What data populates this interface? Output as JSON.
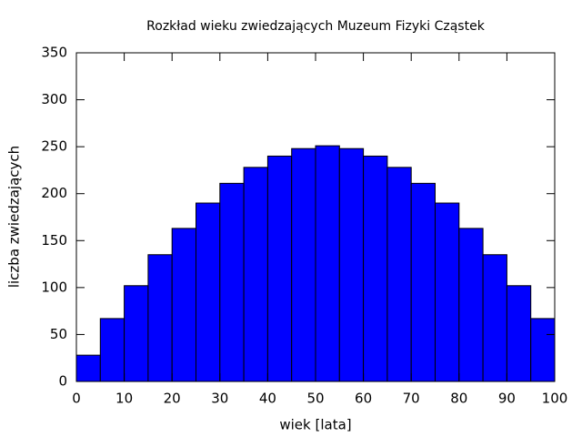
{
  "chart_data": {
    "type": "histogram",
    "title": "Rozkład wieku zwiedzających Muzeum Fizyki Cząstek",
    "x_label": "wiek [lata]",
    "y_label": "liczba zwiedzających",
    "bins": [
      0,
      5,
      10,
      15,
      20,
      25,
      30,
      35,
      40,
      45,
      50,
      55,
      60,
      65,
      70,
      75,
      80,
      85,
      90,
      95,
      100
    ],
    "values": [
      28,
      67,
      102,
      135,
      163,
      190,
      211,
      228,
      240,
      248,
      251,
      248,
      240,
      228,
      211,
      190,
      163,
      135,
      102,
      67
    ],
    "color": "#0000ff",
    "xlim": [
      0,
      100
    ],
    "xticks": [
      0,
      10,
      20,
      30,
      40,
      50,
      60,
      70,
      80,
      90,
      100
    ],
    "ylim": [
      0,
      350
    ],
    "yticks": [
      0,
      50,
      100,
      150,
      200,
      250,
      300,
      350
    ],
    "grid": false
  }
}
